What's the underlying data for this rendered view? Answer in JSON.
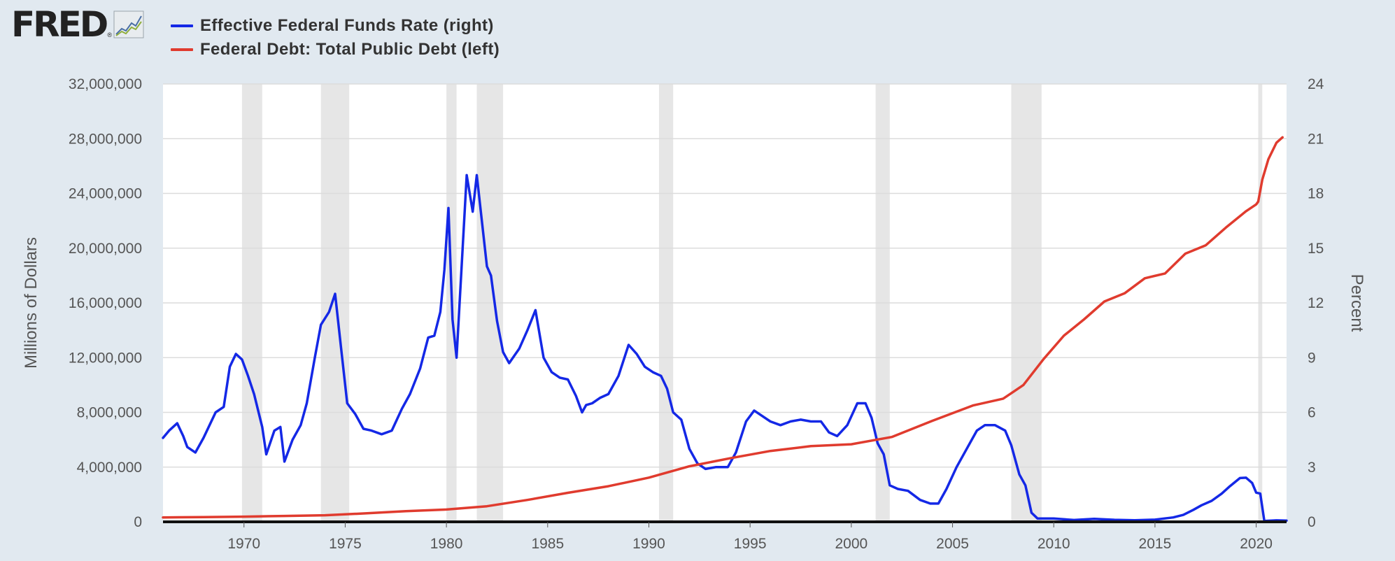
{
  "logo": {
    "text": "FRED",
    "reg": "®",
    "icon": "line-chart-icon"
  },
  "legend": [
    {
      "label": "Effective Federal Funds Rate (right)",
      "color": "#1428e6"
    },
    {
      "label": "Federal Debt: Total Public Debt (left)",
      "color": "#e03b2e"
    }
  ],
  "chart_data": {
    "type": "line",
    "title": "",
    "xlabel": "",
    "ylabel_left": "Millions of Dollars",
    "ylabel_right": "Percent",
    "xlim": [
      1966.0,
      2021.5
    ],
    "ylim_left": [
      0,
      32000000
    ],
    "ylim_right": [
      0,
      24
    ],
    "grid": true,
    "legend_position": "top-left",
    "x_ticks": [
      "1970",
      "1975",
      "1980",
      "1985",
      "1990",
      "1995",
      "2000",
      "2005",
      "2010",
      "2015",
      "2020"
    ],
    "y_ticks_left": [
      "0",
      "4,000,000",
      "8,000,000",
      "12,000,000",
      "16,000,000",
      "20,000,000",
      "24,000,000",
      "28,000,000",
      "32,000,000"
    ],
    "y_ticks_right": [
      "0",
      "3",
      "6",
      "9",
      "12",
      "15",
      "18",
      "21",
      "24"
    ],
    "recessions": [
      [
        1969.9,
        1970.9
      ],
      [
        1973.8,
        1975.2
      ],
      [
        1980.0,
        1980.5
      ],
      [
        1981.5,
        1982.8
      ],
      [
        1990.5,
        1991.2
      ],
      [
        2001.2,
        2001.9
      ],
      [
        2007.9,
        2009.4
      ],
      [
        2020.1,
        2020.3
      ]
    ],
    "series": [
      {
        "name": "Effective Federal Funds Rate (right)",
        "axis": "right",
        "color": "#1428e6",
        "x": [
          1966.0,
          1966.3,
          1966.7,
          1967.0,
          1967.2,
          1967.6,
          1968.0,
          1968.6,
          1969.0,
          1969.3,
          1969.6,
          1969.9,
          1970.2,
          1970.5,
          1970.9,
          1971.1,
          1971.5,
          1971.8,
          1972.0,
          1972.4,
          1972.8,
          1973.1,
          1973.5,
          1973.8,
          1974.2,
          1974.5,
          1974.8,
          1975.1,
          1975.5,
          1975.9,
          1976.3,
          1976.8,
          1977.3,
          1977.8,
          1978.2,
          1978.7,
          1979.1,
          1979.4,
          1979.7,
          1979.9,
          1980.1,
          1980.3,
          1980.5,
          1980.8,
          1981.0,
          1981.3,
          1981.5,
          1981.8,
          1982.0,
          1982.2,
          1982.5,
          1982.8,
          1983.1,
          1983.6,
          1984.0,
          1984.4,
          1984.8,
          1985.2,
          1985.6,
          1986.0,
          1986.4,
          1986.7,
          1986.9,
          1987.2,
          1987.6,
          1988.0,
          1988.5,
          1989.0,
          1989.4,
          1989.8,
          1990.2,
          1990.6,
          1990.9,
          1991.2,
          1991.6,
          1992.0,
          1992.4,
          1992.8,
          1993.3,
          1993.9,
          1994.3,
          1994.8,
          1995.2,
          1995.6,
          1996.0,
          1996.5,
          1997.0,
          1997.5,
          1998.0,
          1998.5,
          1998.9,
          1999.3,
          1999.8,
          2000.3,
          2000.7,
          2001.0,
          2001.3,
          2001.6,
          2001.9,
          2002.3,
          2002.8,
          2003.4,
          2003.9,
          2004.3,
          2004.7,
          2005.2,
          2005.7,
          2006.2,
          2006.6,
          2007.1,
          2007.6,
          2007.9,
          2008.3,
          2008.6,
          2008.9,
          2009.2,
          2010.0,
          2011.0,
          2012.0,
          2013.0,
          2014.0,
          2015.0,
          2015.9,
          2016.4,
          2016.9,
          2017.3,
          2017.8,
          2018.3,
          2018.7,
          2019.2,
          2019.5,
          2019.8,
          2020.0,
          2020.2,
          2020.4,
          2021.0,
          2021.5
        ],
        "y": [
          4.6,
          5.0,
          5.4,
          4.7,
          4.1,
          3.8,
          4.6,
          6.0,
          6.3,
          8.5,
          9.2,
          8.9,
          8.0,
          7.0,
          5.2,
          3.7,
          5.0,
          5.2,
          3.3,
          4.5,
          5.3,
          6.5,
          9.0,
          10.8,
          11.5,
          12.5,
          9.5,
          6.5,
          5.9,
          5.1,
          5.0,
          4.8,
          5.0,
          6.2,
          7.0,
          8.4,
          10.1,
          10.2,
          11.5,
          13.8,
          17.2,
          11.1,
          9.0,
          15.0,
          19.0,
          17.0,
          19.0,
          16.0,
          14.0,
          13.5,
          11.0,
          9.3,
          8.7,
          9.5,
          10.5,
          11.6,
          9.0,
          8.2,
          7.9,
          7.8,
          6.9,
          6.0,
          6.4,
          6.5,
          6.8,
          7.0,
          8.0,
          9.7,
          9.2,
          8.5,
          8.2,
          8.0,
          7.3,
          6.0,
          5.6,
          4.0,
          3.2,
          2.9,
          3.0,
          3.0,
          3.8,
          5.5,
          6.1,
          5.8,
          5.5,
          5.3,
          5.5,
          5.6,
          5.5,
          5.5,
          4.9,
          4.7,
          5.3,
          6.5,
          6.5,
          5.7,
          4.3,
          3.7,
          2.0,
          1.8,
          1.7,
          1.2,
          1.0,
          1.0,
          1.8,
          3.0,
          4.0,
          5.0,
          5.3,
          5.3,
          5.0,
          4.2,
          2.6,
          2.0,
          0.5,
          0.18,
          0.18,
          0.1,
          0.16,
          0.11,
          0.09,
          0.12,
          0.24,
          0.38,
          0.66,
          0.91,
          1.15,
          1.55,
          1.95,
          2.4,
          2.42,
          2.13,
          1.6,
          1.55,
          0.05,
          0.08,
          0.07
        ]
      },
      {
        "name": "Federal Debt: Total Public Debt (left)",
        "axis": "left",
        "color": "#e03b2e",
        "x": [
          1966.0,
          1968.0,
          1970.0,
          1972.0,
          1974.0,
          1976.0,
          1978.0,
          1980.0,
          1982.0,
          1984.0,
          1986.0,
          1988.0,
          1990.0,
          1992.0,
          1994.0,
          1996.0,
          1998.0,
          2000.0,
          2002.0,
          2004.0,
          2006.0,
          2007.5,
          2008.0,
          2008.5,
          2009.5,
          2010.5,
          2011.5,
          2012.5,
          2013.5,
          2014.5,
          2015.5,
          2016.5,
          2017.5,
          2018.5,
          2019.5,
          2020.0,
          2020.1,
          2020.3,
          2020.6,
          2021.0,
          2021.3
        ],
        "y": [
          320000,
          350000,
          380000,
          430000,
          480000,
          620000,
          780000,
          900000,
          1140000,
          1600000,
          2120000,
          2600000,
          3230000,
          4060000,
          4640000,
          5180000,
          5530000,
          5670000,
          6200000,
          7380000,
          8500000,
          9000000,
          9500000,
          10000000,
          11900000,
          13600000,
          14800000,
          16100000,
          16700000,
          17800000,
          18150000,
          19600000,
          20200000,
          21500000,
          22700000,
          23200000,
          23400000,
          25000000,
          26500000,
          27700000,
          28100000
        ]
      }
    ]
  }
}
